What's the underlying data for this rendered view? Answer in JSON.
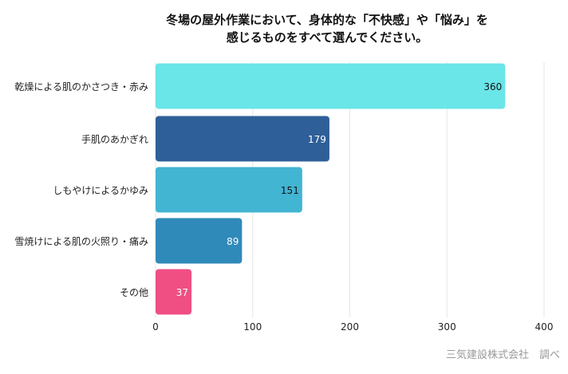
{
  "chart_data": {
    "type": "bar",
    "orientation": "horizontal",
    "title_lines": [
      "冬場の屋外作業において、身体的な「不快感」や「悩み」を",
      "感じるものをすべて選んでください。"
    ],
    "categories": [
      "乾燥による肌のかさつき・赤み",
      "手肌のあかぎれ",
      "しもやけによるかゆみ",
      "雪焼けによる肌の火照り・痛み",
      "その他"
    ],
    "values": [
      360,
      179,
      151,
      89,
      37
    ],
    "colors": [
      "#6ae5e8",
      "#2e5f98",
      "#42b5d3",
      "#2f8ab9",
      "#ef4f83"
    ],
    "label_colors": [
      "#111111",
      "#ffffff",
      "#111111",
      "#ffffff",
      "#ffffff"
    ],
    "xlim": [
      0,
      400
    ],
    "xticks": [
      0,
      100,
      200,
      300,
      400
    ],
    "grid": true,
    "xlabel": "",
    "ylabel": ""
  },
  "source": "三気建設株式会社　調べ"
}
